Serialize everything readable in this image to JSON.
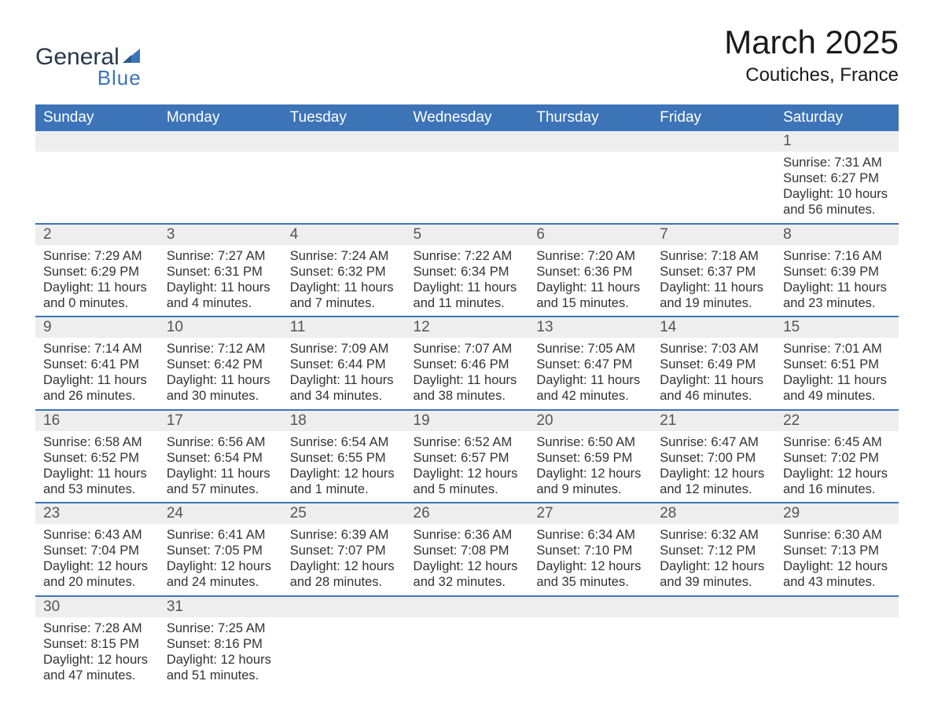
{
  "logo": {
    "word1": "General",
    "word2": "Blue"
  },
  "title": {
    "month_year": "March 2025",
    "location": "Coutiches, France"
  },
  "calendar": {
    "day_headers": [
      "Sunday",
      "Monday",
      "Tuesday",
      "Wednesday",
      "Thursday",
      "Friday",
      "Saturday"
    ],
    "colors": {
      "header_bg": "#3d74b8",
      "header_text": "#ffffff",
      "daynum_bg": "#eeeeee",
      "row_divider": "#3d74b8",
      "body_text": "#333333",
      "logo_dark": "#28384a",
      "logo_blue": "#3d74b8",
      "page_bg": "#ffffff"
    },
    "weeks": [
      [
        null,
        null,
        null,
        null,
        null,
        null,
        {
          "day": "1",
          "sunrise": "Sunrise: 7:31 AM",
          "sunset": "Sunset: 6:27 PM",
          "daylight1": "Daylight: 10 hours",
          "daylight2": "and 56 minutes."
        }
      ],
      [
        {
          "day": "2",
          "sunrise": "Sunrise: 7:29 AM",
          "sunset": "Sunset: 6:29 PM",
          "daylight1": "Daylight: 11 hours",
          "daylight2": "and 0 minutes."
        },
        {
          "day": "3",
          "sunrise": "Sunrise: 7:27 AM",
          "sunset": "Sunset: 6:31 PM",
          "daylight1": "Daylight: 11 hours",
          "daylight2": "and 4 minutes."
        },
        {
          "day": "4",
          "sunrise": "Sunrise: 7:24 AM",
          "sunset": "Sunset: 6:32 PM",
          "daylight1": "Daylight: 11 hours",
          "daylight2": "and 7 minutes."
        },
        {
          "day": "5",
          "sunrise": "Sunrise: 7:22 AM",
          "sunset": "Sunset: 6:34 PM",
          "daylight1": "Daylight: 11 hours",
          "daylight2": "and 11 minutes."
        },
        {
          "day": "6",
          "sunrise": "Sunrise: 7:20 AM",
          "sunset": "Sunset: 6:36 PM",
          "daylight1": "Daylight: 11 hours",
          "daylight2": "and 15 minutes."
        },
        {
          "day": "7",
          "sunrise": "Sunrise: 7:18 AM",
          "sunset": "Sunset: 6:37 PM",
          "daylight1": "Daylight: 11 hours",
          "daylight2": "and 19 minutes."
        },
        {
          "day": "8",
          "sunrise": "Sunrise: 7:16 AM",
          "sunset": "Sunset: 6:39 PM",
          "daylight1": "Daylight: 11 hours",
          "daylight2": "and 23 minutes."
        }
      ],
      [
        {
          "day": "9",
          "sunrise": "Sunrise: 7:14 AM",
          "sunset": "Sunset: 6:41 PM",
          "daylight1": "Daylight: 11 hours",
          "daylight2": "and 26 minutes."
        },
        {
          "day": "10",
          "sunrise": "Sunrise: 7:12 AM",
          "sunset": "Sunset: 6:42 PM",
          "daylight1": "Daylight: 11 hours",
          "daylight2": "and 30 minutes."
        },
        {
          "day": "11",
          "sunrise": "Sunrise: 7:09 AM",
          "sunset": "Sunset: 6:44 PM",
          "daylight1": "Daylight: 11 hours",
          "daylight2": "and 34 minutes."
        },
        {
          "day": "12",
          "sunrise": "Sunrise: 7:07 AM",
          "sunset": "Sunset: 6:46 PM",
          "daylight1": "Daylight: 11 hours",
          "daylight2": "and 38 minutes."
        },
        {
          "day": "13",
          "sunrise": "Sunrise: 7:05 AM",
          "sunset": "Sunset: 6:47 PM",
          "daylight1": "Daylight: 11 hours",
          "daylight2": "and 42 minutes."
        },
        {
          "day": "14",
          "sunrise": "Sunrise: 7:03 AM",
          "sunset": "Sunset: 6:49 PM",
          "daylight1": "Daylight: 11 hours",
          "daylight2": "and 46 minutes."
        },
        {
          "day": "15",
          "sunrise": "Sunrise: 7:01 AM",
          "sunset": "Sunset: 6:51 PM",
          "daylight1": "Daylight: 11 hours",
          "daylight2": "and 49 minutes."
        }
      ],
      [
        {
          "day": "16",
          "sunrise": "Sunrise: 6:58 AM",
          "sunset": "Sunset: 6:52 PM",
          "daylight1": "Daylight: 11 hours",
          "daylight2": "and 53 minutes."
        },
        {
          "day": "17",
          "sunrise": "Sunrise: 6:56 AM",
          "sunset": "Sunset: 6:54 PM",
          "daylight1": "Daylight: 11 hours",
          "daylight2": "and 57 minutes."
        },
        {
          "day": "18",
          "sunrise": "Sunrise: 6:54 AM",
          "sunset": "Sunset: 6:55 PM",
          "daylight1": "Daylight: 12 hours",
          "daylight2": "and 1 minute."
        },
        {
          "day": "19",
          "sunrise": "Sunrise: 6:52 AM",
          "sunset": "Sunset: 6:57 PM",
          "daylight1": "Daylight: 12 hours",
          "daylight2": "and 5 minutes."
        },
        {
          "day": "20",
          "sunrise": "Sunrise: 6:50 AM",
          "sunset": "Sunset: 6:59 PM",
          "daylight1": "Daylight: 12 hours",
          "daylight2": "and 9 minutes."
        },
        {
          "day": "21",
          "sunrise": "Sunrise: 6:47 AM",
          "sunset": "Sunset: 7:00 PM",
          "daylight1": "Daylight: 12 hours",
          "daylight2": "and 12 minutes."
        },
        {
          "day": "22",
          "sunrise": "Sunrise: 6:45 AM",
          "sunset": "Sunset: 7:02 PM",
          "daylight1": "Daylight: 12 hours",
          "daylight2": "and 16 minutes."
        }
      ],
      [
        {
          "day": "23",
          "sunrise": "Sunrise: 6:43 AM",
          "sunset": "Sunset: 7:04 PM",
          "daylight1": "Daylight: 12 hours",
          "daylight2": "and 20 minutes."
        },
        {
          "day": "24",
          "sunrise": "Sunrise: 6:41 AM",
          "sunset": "Sunset: 7:05 PM",
          "daylight1": "Daylight: 12 hours",
          "daylight2": "and 24 minutes."
        },
        {
          "day": "25",
          "sunrise": "Sunrise: 6:39 AM",
          "sunset": "Sunset: 7:07 PM",
          "daylight1": "Daylight: 12 hours",
          "daylight2": "and 28 minutes."
        },
        {
          "day": "26",
          "sunrise": "Sunrise: 6:36 AM",
          "sunset": "Sunset: 7:08 PM",
          "daylight1": "Daylight: 12 hours",
          "daylight2": "and 32 minutes."
        },
        {
          "day": "27",
          "sunrise": "Sunrise: 6:34 AM",
          "sunset": "Sunset: 7:10 PM",
          "daylight1": "Daylight: 12 hours",
          "daylight2": "and 35 minutes."
        },
        {
          "day": "28",
          "sunrise": "Sunrise: 6:32 AM",
          "sunset": "Sunset: 7:12 PM",
          "daylight1": "Daylight: 12 hours",
          "daylight2": "and 39 minutes."
        },
        {
          "day": "29",
          "sunrise": "Sunrise: 6:30 AM",
          "sunset": "Sunset: 7:13 PM",
          "daylight1": "Daylight: 12 hours",
          "daylight2": "and 43 minutes."
        }
      ],
      [
        {
          "day": "30",
          "sunrise": "Sunrise: 7:28 AM",
          "sunset": "Sunset: 8:15 PM",
          "daylight1": "Daylight: 12 hours",
          "daylight2": "and 47 minutes."
        },
        {
          "day": "31",
          "sunrise": "Sunrise: 7:25 AM",
          "sunset": "Sunset: 8:16 PM",
          "daylight1": "Daylight: 12 hours",
          "daylight2": "and 51 minutes."
        },
        null,
        null,
        null,
        null,
        null
      ]
    ]
  }
}
